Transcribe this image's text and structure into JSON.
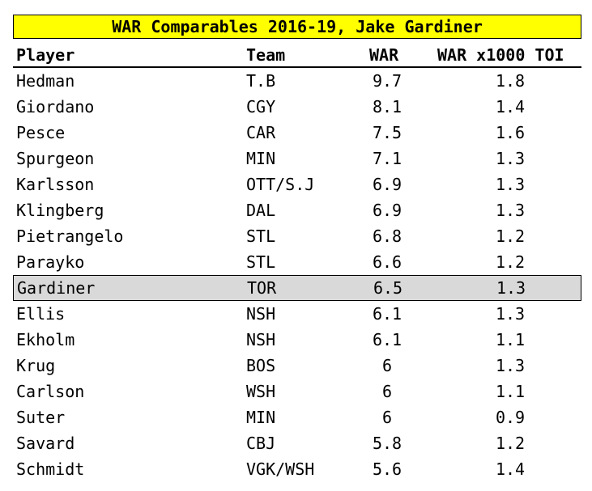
{
  "title": "WAR Comparables 2016-19, Jake Gardiner",
  "headers": {
    "player": "Player",
    "team": "Team",
    "war": "WAR",
    "war_x1000": "WAR x1000 TOI"
  },
  "highlight_color": "#d9d9d9",
  "title_color": "#ffff00",
  "rows": [
    {
      "player": "Hedman",
      "team": "T.B",
      "war": "9.7",
      "war_x1000": "1.8"
    },
    {
      "player": "Giordano",
      "team": "CGY",
      "war": "8.1",
      "war_x1000": "1.4"
    },
    {
      "player": "Pesce",
      "team": "CAR",
      "war": "7.5",
      "war_x1000": "1.6"
    },
    {
      "player": "Spurgeon",
      "team": "MIN",
      "war": "7.1",
      "war_x1000": "1.3"
    },
    {
      "player": "Karlsson",
      "team": "OTT/S.J",
      "war": "6.9",
      "war_x1000": "1.3"
    },
    {
      "player": "Klingberg",
      "team": "DAL",
      "war": "6.9",
      "war_x1000": "1.3"
    },
    {
      "player": "Pietrangelo",
      "team": "STL",
      "war": "6.8",
      "war_x1000": "1.2"
    },
    {
      "player": "Parayko",
      "team": "STL",
      "war": "6.6",
      "war_x1000": "1.2"
    },
    {
      "player": "Gardiner",
      "team": "TOR",
      "war": "6.5",
      "war_x1000": "1.3",
      "highlighted": true
    },
    {
      "player": "Ellis",
      "team": "NSH",
      "war": "6.1",
      "war_x1000": "1.3"
    },
    {
      "player": "Ekholm",
      "team": "NSH",
      "war": "6.1",
      "war_x1000": "1.1"
    },
    {
      "player": "Krug",
      "team": "BOS",
      "war": "6",
      "war_x1000": "1.3"
    },
    {
      "player": "Carlson",
      "team": "WSH",
      "war": "6",
      "war_x1000": "1.1"
    },
    {
      "player": "Suter",
      "team": "MIN",
      "war": "6",
      "war_x1000": "0.9"
    },
    {
      "player": "Savard",
      "team": "CBJ",
      "war": "5.8",
      "war_x1000": "1.2"
    },
    {
      "player": "Schmidt",
      "team": "VGK/WSH",
      "war": "5.6",
      "war_x1000": "1.4"
    }
  ]
}
